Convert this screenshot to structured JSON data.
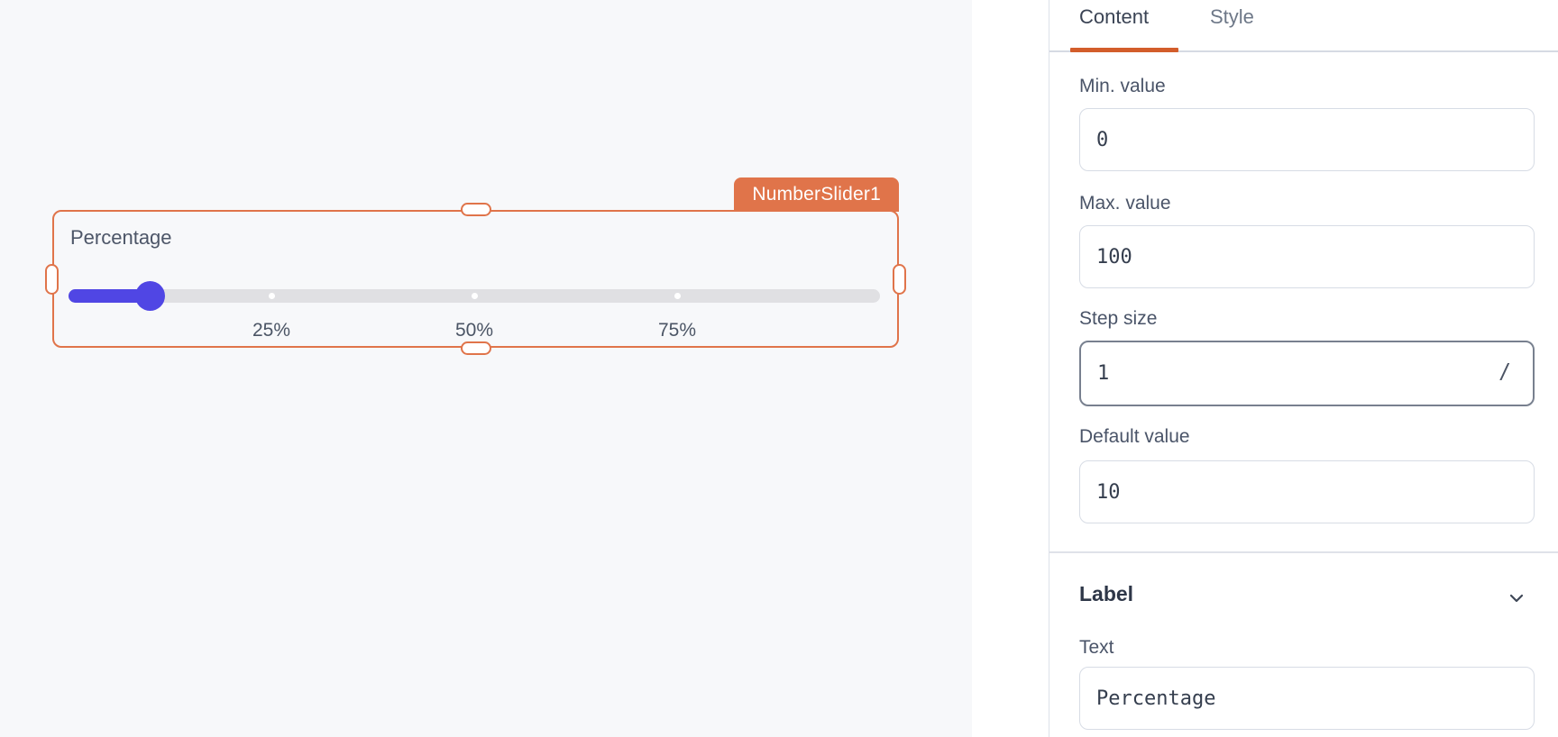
{
  "app": {
    "canvas_background": "#f7f8fa",
    "panel_background": "#ffffff"
  },
  "canvas": {
    "component": {
      "tag": "NumberSlider1",
      "label": "Percentage",
      "ticks": [
        "25%",
        "50%",
        "75%"
      ],
      "min": 0,
      "max": 100,
      "value": 10,
      "accent_color": "#5046e4",
      "selection_color": "#e0744a"
    }
  },
  "inspector": {
    "tabs": [
      {
        "label": "Content",
        "active": true
      },
      {
        "label": "Style",
        "active": false
      }
    ],
    "active_tab_underline_color": "#d35d2b",
    "fields": [
      {
        "label": "Min. value",
        "value": "0"
      },
      {
        "label": "Max. value",
        "value": "100"
      },
      {
        "label": "Step size",
        "value": "1",
        "shortcut_hint": "/",
        "focused": true
      },
      {
        "label": "Default value",
        "value": "10"
      }
    ],
    "label_section": {
      "title": "Label",
      "collapse_icon": "chevron-down",
      "fields": [
        {
          "label": "Text",
          "value": "Percentage"
        }
      ]
    }
  }
}
